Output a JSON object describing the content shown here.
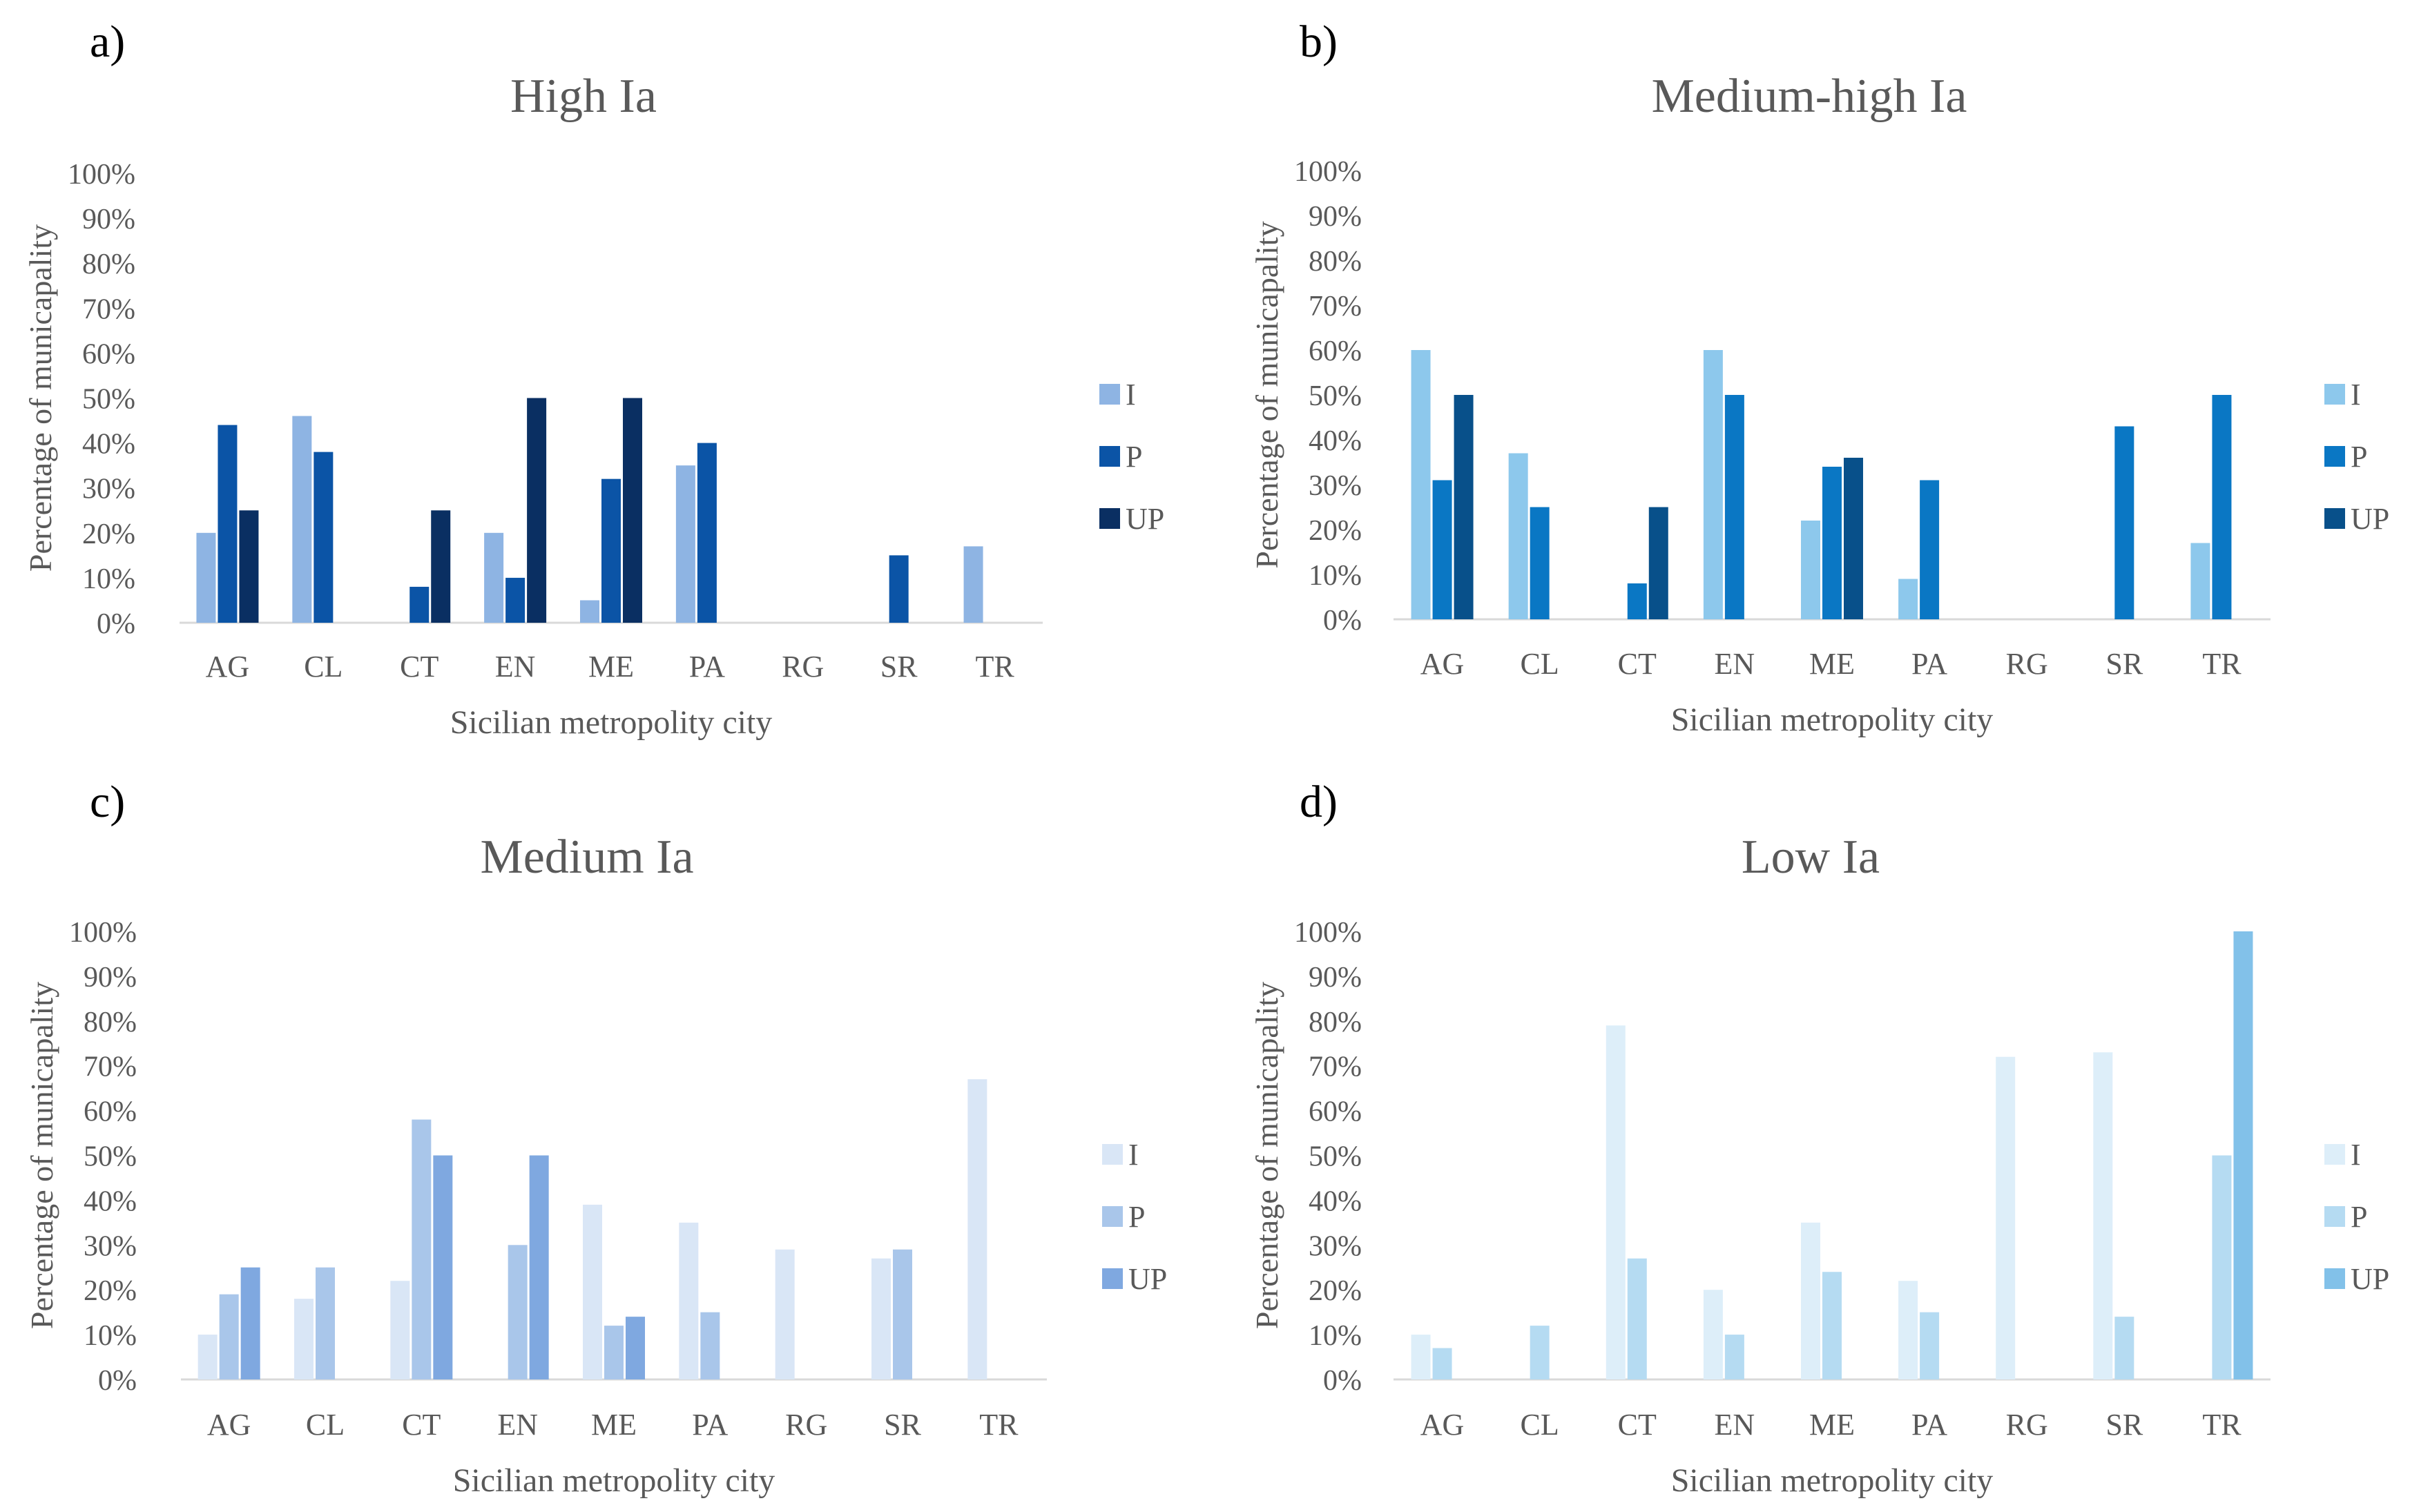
{
  "chart_data": [
    {
      "panel_label": "a)",
      "type": "bar",
      "title": "High Ia",
      "xlabel": "Sicilian metropolity city",
      "ylabel": "Percentage of municapality",
      "ylim": [
        0,
        100
      ],
      "yticks": [
        "0%",
        "10%",
        "20%",
        "30%",
        "40%",
        "50%",
        "60%",
        "70%",
        "80%",
        "90%",
        "100%"
      ],
      "categories": [
        "AG",
        "CL",
        "CT",
        "EN",
        "ME",
        "PA",
        "RG",
        "SR",
        "TR"
      ],
      "legend_position": "right",
      "series": [
        {
          "name": "I",
          "color": "#8EB4E3",
          "values": [
            20,
            46,
            0,
            20,
            5,
            35,
            0,
            0,
            17
          ]
        },
        {
          "name": "P",
          "color": "#0B54A6",
          "values": [
            44,
            38,
            8,
            10,
            32,
            40,
            0,
            15,
            0
          ]
        },
        {
          "name": "UP",
          "color": "#0A2F62",
          "values": [
            25,
            0,
            25,
            50,
            50,
            0,
            0,
            0,
            0
          ]
        }
      ]
    },
    {
      "panel_label": "b)",
      "type": "bar",
      "title": "Medium-high Ia",
      "xlabel": "Sicilian metropolity city",
      "ylabel": "Percentage of municapality",
      "ylim": [
        0,
        100
      ],
      "yticks": [
        "0%",
        "10%",
        "20%",
        "30%",
        "40%",
        "50%",
        "60%",
        "70%",
        "80%",
        "90%",
        "100%"
      ],
      "categories": [
        "AG",
        "CL",
        "CT",
        "EN",
        "ME",
        "PA",
        "RG",
        "SR",
        "TR"
      ],
      "legend_position": "right",
      "series": [
        {
          "name": "I",
          "color": "#8DC8EC",
          "values": [
            60,
            37,
            0,
            60,
            22,
            9,
            0,
            0,
            17
          ]
        },
        {
          "name": "P",
          "color": "#0A77C4",
          "values": [
            31,
            25,
            8,
            50,
            34,
            31,
            0,
            43,
            50
          ]
        },
        {
          "name": "UP",
          "color": "#08508A",
          "values": [
            50,
            0,
            25,
            0,
            36,
            0,
            0,
            0,
            0
          ]
        }
      ]
    },
    {
      "panel_label": "c)",
      "type": "bar",
      "title": "Medium Ia",
      "xlabel": "Sicilian metropolity city",
      "ylabel": "Percentage of municapality",
      "ylim": [
        0,
        100
      ],
      "yticks": [
        "0%",
        "10%",
        "20%",
        "30%",
        "40%",
        "50%",
        "60%",
        "70%",
        "80%",
        "90%",
        "100%"
      ],
      "categories": [
        "AG",
        "CL",
        "CT",
        "EN",
        "ME",
        "PA",
        "RG",
        "SR",
        "TR"
      ],
      "legend_position": "right",
      "series": [
        {
          "name": "I",
          "color": "#D9E6F6",
          "values": [
            10,
            18,
            22,
            0,
            39,
            35,
            29,
            27,
            67
          ]
        },
        {
          "name": "P",
          "color": "#A9C6EA",
          "values": [
            19,
            25,
            58,
            30,
            12,
            15,
            0,
            29,
            0
          ]
        },
        {
          "name": "UP",
          "color": "#7FA8E0",
          "values": [
            25,
            0,
            50,
            50,
            14,
            0,
            0,
            0,
            0
          ]
        }
      ]
    },
    {
      "panel_label": "d)",
      "type": "bar",
      "title": "Low Ia",
      "xlabel": "Sicilian metropolity city",
      "ylabel": "Percentage of municapality",
      "ylim": [
        0,
        100
      ],
      "yticks": [
        "0%",
        "10%",
        "20%",
        "30%",
        "40%",
        "50%",
        "60%",
        "70%",
        "80%",
        "90%",
        "100%"
      ],
      "categories": [
        "AG",
        "CL",
        "CT",
        "EN",
        "ME",
        "PA",
        "RG",
        "SR",
        "TR"
      ],
      "legend_position": "right",
      "series": [
        {
          "name": "I",
          "color": "#DDEEF9",
          "values": [
            10,
            0,
            79,
            20,
            35,
            22,
            72,
            73,
            0
          ]
        },
        {
          "name": "P",
          "color": "#B5DBF2",
          "values": [
            7,
            12,
            27,
            10,
            24,
            15,
            0,
            14,
            50
          ]
        },
        {
          "name": "UP",
          "color": "#82C1E9",
          "values": [
            0,
            0,
            0,
            0,
            0,
            0,
            0,
            0,
            100
          ]
        }
      ]
    }
  ]
}
